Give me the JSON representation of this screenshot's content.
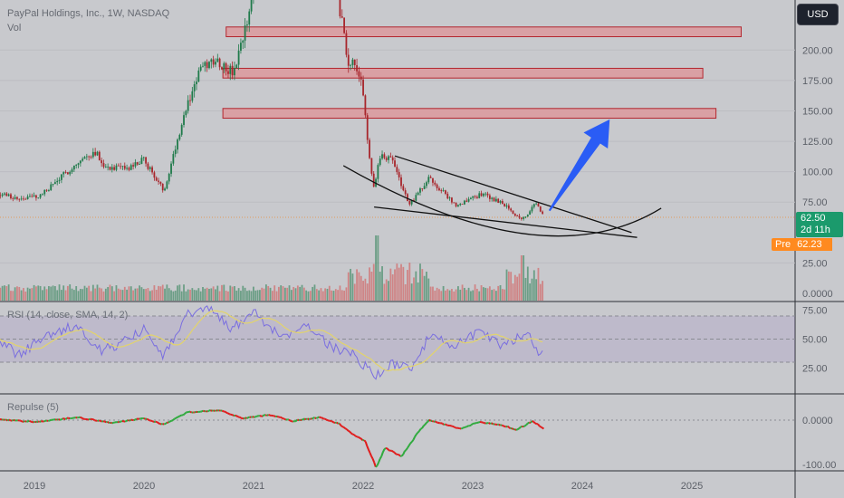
{
  "header": {
    "symbol_title": "PayPal Holdings, Inc., 1W, NASDAQ",
    "volume_label": "Vol"
  },
  "currency_button": "USD",
  "last_price": {
    "value": "62.50",
    "countdown": "2d 11h"
  },
  "premarket": {
    "label": "Pre",
    "value": "62.23"
  },
  "indicators": {
    "rsi_title": "RSI (14, close, SMA, 14, 2)",
    "repulse_title": "Repulse (5)"
  },
  "colors": {
    "background": "#c8c9cd",
    "up_candle": "#1f7a4a",
    "down_candle": "#a8262c",
    "zone_fill": "#d9a0a4",
    "zone_stroke": "#b3262e",
    "arrow": "#2a5cf5",
    "rsi_line": "#7a6ee0",
    "rsi_ma": "#e3d46a",
    "repulse_up": "#2eaa3c",
    "repulse_down": "#e01b1b"
  },
  "chart_data": [
    {
      "type": "candlestick",
      "title": "PayPal Holdings, Inc., 1W, NASDAQ",
      "x_ticks": [
        "2019",
        "2020",
        "2021",
        "2022",
        "2023",
        "2024",
        "2025"
      ],
      "y_ticks": [
        "200.00",
        "175.00",
        "150.00",
        "125.00",
        "100.00",
        "75.00",
        "25.00",
        "0.0000"
      ],
      "ylim": [
        0,
        225
      ],
      "price_anchors": [
        {
          "date": "2018.65",
          "price": 83
        },
        {
          "date": "2018.85",
          "price": 78
        },
        {
          "date": "2019.05",
          "price": 80
        },
        {
          "date": "2019.35",
          "price": 104
        },
        {
          "date": "2019.55",
          "price": 117
        },
        {
          "date": "2019.65",
          "price": 104
        },
        {
          "date": "2019.85",
          "price": 102
        },
        {
          "date": "2020.0",
          "price": 110
        },
        {
          "date": "2020.18",
          "price": 84
        },
        {
          "date": "2020.35",
          "price": 142
        },
        {
          "date": "2020.5",
          "price": 182
        },
        {
          "date": "2020.65",
          "price": 193
        },
        {
          "date": "2020.82",
          "price": 180
        },
        {
          "date": "2020.95",
          "price": 225
        },
        {
          "date": "2021.05",
          "price": 278
        },
        {
          "date": "2021.25",
          "price": 248
        },
        {
          "date": "2021.55",
          "price": 300
        },
        {
          "date": "2021.8",
          "price": 230
        },
        {
          "date": "2021.86",
          "price": 192
        },
        {
          "date": "2021.98",
          "price": 180
        },
        {
          "date": "2022.05",
          "price": 115
        },
        {
          "date": "2022.1",
          "price": 88
        },
        {
          "date": "2022.15",
          "price": 112
        },
        {
          "date": "2022.25",
          "price": 112
        },
        {
          "date": "2022.42",
          "price": 72
        },
        {
          "date": "2022.6",
          "price": 95
        },
        {
          "date": "2022.85",
          "price": 72
        },
        {
          "date": "2023.1",
          "price": 82
        },
        {
          "date": "2023.3",
          "price": 72
        },
        {
          "date": "2023.45",
          "price": 60
        },
        {
          "date": "2023.52",
          "price": 67
        },
        {
          "date": "2023.58",
          "price": 74
        },
        {
          "date": "2023.65",
          "price": 62.5
        }
      ],
      "resistance_zones": [
        {
          "from": "2020.75",
          "to": "2025.45",
          "low": 211,
          "high": 219
        },
        {
          "from": "2020.72",
          "to": "2025.1",
          "low": 177,
          "high": 185
        },
        {
          "from": "2020.72",
          "to": "2025.22",
          "low": 144,
          "high": 152
        }
      ],
      "falling_wedge": {
        "upper": [
          {
            "date": "2022.29",
            "price": 113
          },
          {
            "date": "2024.45",
            "price": 50
          }
        ],
        "lower": [
          {
            "date": "2022.1",
            "price": 71
          },
          {
            "date": "2024.5",
            "price": 46
          }
        ]
      },
      "rounding_bottom": [
        {
          "date": "2021.82",
          "price": 105
        },
        {
          "date": "2023.65",
          "price": 45
        },
        {
          "date": "2024.72",
          "price": 70
        }
      ],
      "projection_arrow": {
        "from": {
          "date": "2023.7",
          "price": 68
        },
        "to": {
          "date": "2024.25",
          "price": 143
        }
      },
      "last_price": 62.5
    },
    {
      "type": "bar",
      "title": "Vol",
      "note": "weekly volume histogram, colored by candle direction"
    },
    {
      "type": "line",
      "title": "RSI (14, close, SMA, 14, 2)",
      "y_ticks": [
        "75.00",
        "50.00",
        "25.00"
      ],
      "ylim": [
        0,
        100
      ],
      "bands": [
        70,
        50,
        30
      ],
      "rsi_anchors": [
        {
          "date": "2018.65",
          "value": 52
        },
        {
          "date": "2018.85",
          "value": 36
        },
        {
          "date": "2019.15",
          "value": 55
        },
        {
          "date": "2019.4",
          "value": 62
        },
        {
          "date": "2019.6",
          "value": 40
        },
        {
          "date": "2019.8",
          "value": 47
        },
        {
          "date": "2020.0",
          "value": 58
        },
        {
          "date": "2020.18",
          "value": 34
        },
        {
          "date": "2020.4",
          "value": 72
        },
        {
          "date": "2020.6",
          "value": 76
        },
        {
          "date": "2020.8",
          "value": 58
        },
        {
          "date": "2021.0",
          "value": 74
        },
        {
          "date": "2021.25",
          "value": 52
        },
        {
          "date": "2021.5",
          "value": 63
        },
        {
          "date": "2021.7",
          "value": 43
        },
        {
          "date": "2021.9",
          "value": 38
        },
        {
          "date": "2022.1",
          "value": 18
        },
        {
          "date": "2022.25",
          "value": 28
        },
        {
          "date": "2022.45",
          "value": 26
        },
        {
          "date": "2022.6",
          "value": 52
        },
        {
          "date": "2022.85",
          "value": 45
        },
        {
          "date": "2023.05",
          "value": 55
        },
        {
          "date": "2023.3",
          "value": 44
        },
        {
          "date": "2023.5",
          "value": 58
        },
        {
          "date": "2023.6",
          "value": 38
        },
        {
          "date": "2023.65",
          "value": 42
        }
      ]
    },
    {
      "type": "line",
      "title": "Repulse (5)",
      "y_ticks": [
        "0.0000",
        "-100.00"
      ],
      "ylim": [
        -120,
        40
      ],
      "repulse_anchors": [
        {
          "date": "2018.65",
          "value": 2
        },
        {
          "date": "2019.0",
          "value": -4
        },
        {
          "date": "2019.4",
          "value": 6
        },
        {
          "date": "2019.7",
          "value": -6
        },
        {
          "date": "2020.0",
          "value": 4
        },
        {
          "date": "2020.18",
          "value": -10
        },
        {
          "date": "2020.4",
          "value": 18
        },
        {
          "date": "2020.7",
          "value": 22
        },
        {
          "date": "2020.9",
          "value": 4
        },
        {
          "date": "2021.15",
          "value": 12
        },
        {
          "date": "2021.35",
          "value": -2
        },
        {
          "date": "2021.6",
          "value": 6
        },
        {
          "date": "2021.78",
          "value": -8
        },
        {
          "date": "2021.9",
          "value": -30
        },
        {
          "date": "2022.02",
          "value": -48
        },
        {
          "date": "2022.12",
          "value": -108
        },
        {
          "date": "2022.2",
          "value": -62
        },
        {
          "date": "2022.35",
          "value": -82
        },
        {
          "date": "2022.5",
          "value": -28
        },
        {
          "date": "2022.6",
          "value": 0
        },
        {
          "date": "2022.75",
          "value": -10
        },
        {
          "date": "2022.9",
          "value": -20
        },
        {
          "date": "2023.05",
          "value": -4
        },
        {
          "date": "2023.25",
          "value": -10
        },
        {
          "date": "2023.4",
          "value": -22
        },
        {
          "date": "2023.55",
          "value": -2
        },
        {
          "date": "2023.65",
          "value": -20
        }
      ]
    }
  ]
}
